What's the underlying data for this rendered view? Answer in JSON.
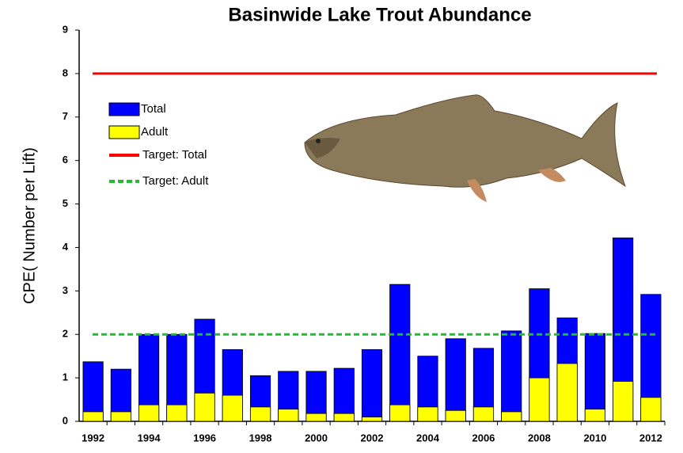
{
  "chart_data": {
    "type": "bar",
    "title": "Basinwide Lake Trout Abundance",
    "y_label": "CPE( Number per Lift)",
    "categories": [
      "1992",
      null,
      "1994",
      null,
      "1996",
      null,
      "1998",
      null,
      "2000",
      null,
      "2002",
      null,
      "2004",
      null,
      "2006",
      null,
      "2008",
      null,
      "2010",
      null,
      "2012"
    ],
    "series": [
      {
        "name": "Total",
        "color": "#0000ff",
        "values": [
          1.37,
          1.2,
          2.0,
          2.0,
          2.35,
          1.65,
          1.05,
          1.15,
          1.15,
          1.22,
          1.65,
          3.15,
          1.5,
          1.9,
          1.68,
          2.08,
          3.05,
          2.38,
          2.02,
          4.22,
          2.92
        ]
      },
      {
        "name": "Adult",
        "color": "#ffff00",
        "values": [
          0.22,
          0.22,
          0.38,
          0.38,
          0.65,
          0.6,
          0.33,
          0.28,
          0.18,
          0.18,
          0.1,
          0.38,
          0.33,
          0.25,
          0.33,
          0.22,
          1.0,
          1.33,
          0.28,
          0.92,
          0.55
        ]
      }
    ],
    "reference_lines": [
      {
        "name": "Target: Total",
        "value": 8,
        "color": "#ff0000",
        "style": "solid"
      },
      {
        "name": "Target: Adult",
        "value": 2,
        "color": "#22bb33",
        "style": "dashed"
      }
    ],
    "ylim": [
      0,
      9
    ],
    "yticks": [
      0,
      1,
      2,
      3,
      4,
      5,
      6,
      7,
      8,
      9
    ],
    "grid": false,
    "legend": "upper left"
  }
}
